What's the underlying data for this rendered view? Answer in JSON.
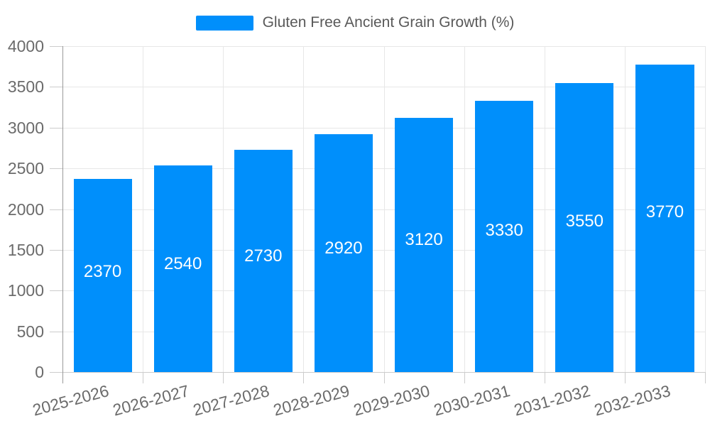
{
  "legend": {
    "label": "Gluten Free Ancient Grain Growth (%)"
  },
  "chart_data": {
    "type": "bar",
    "title": "Gluten Free Ancient Grain Growth (%)",
    "categories": [
      "2025-2026",
      "2026-2027",
      "2027-2028",
      "2028-2029",
      "2029-2030",
      "2030-2031",
      "2031-2032",
      "2032-2033"
    ],
    "values": [
      2370,
      2540,
      2730,
      2920,
      3120,
      3330,
      3550,
      3770
    ],
    "xlabel": "",
    "ylabel": "",
    "ylim": [
      0,
      4000
    ],
    "yticks": [
      0,
      500,
      1000,
      1500,
      2000,
      2500,
      3000,
      3500,
      4000
    ],
    "grid": true,
    "legend_position": "top",
    "x_label_rotation_deg": -15,
    "colors": {
      "bar": "#008ffb",
      "data_label": "#ffffff",
      "grid": "#e7e7e7",
      "tick": "#cccccc",
      "axis_line": "#999999",
      "axis_label": "#6b6b6b",
      "legend_text": "#595959",
      "background": "#ffffff"
    }
  }
}
